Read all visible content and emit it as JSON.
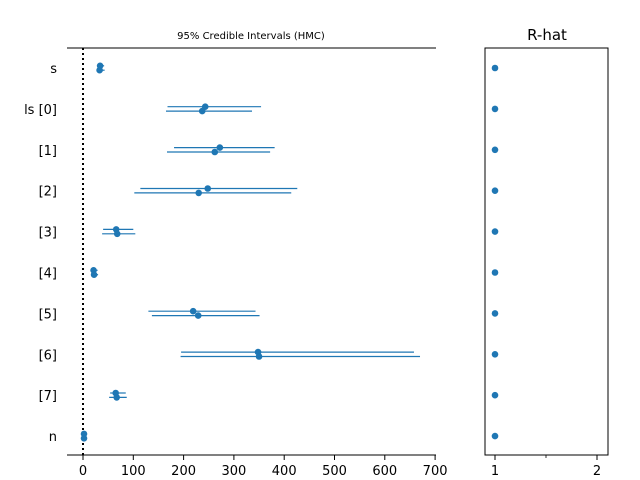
{
  "colors": {
    "series": "#1f77b4",
    "axis": "#000000",
    "refline": "#000000"
  },
  "chart_data": [
    {
      "type": "forest",
      "title": "95% Credible Intervals (HMC)",
      "xlim": [
        -30,
        700
      ],
      "xticks": [
        0,
        100,
        200,
        300,
        400,
        500,
        600,
        700
      ],
      "grid": false,
      "reference_line": {
        "x": 0,
        "style": "dotted"
      },
      "categories": [
        "s",
        "ls [0]",
        "[1]",
        "[2]",
        "[3]",
        "[4]",
        "[5]",
        "[6]",
        "[7]",
        "n"
      ],
      "chains": [
        {
          "median": [
            34,
            243,
            272,
            248,
            66,
            21,
            219,
            348,
            65,
            2
          ],
          "lower": [
            31,
            168,
            181,
            114,
            40,
            18,
            130,
            195,
            54,
            1
          ],
          "upper": [
            42,
            354,
            381,
            426,
            100,
            29,
            343,
            658,
            85,
            3
          ]
        },
        {
          "median": [
            33,
            237,
            262,
            230,
            68,
            22,
            229,
            350,
            67,
            2
          ],
          "lower": [
            30,
            165,
            167,
            102,
            38,
            17,
            137,
            194,
            52,
            1
          ],
          "upper": [
            43,
            336,
            372,
            414,
            104,
            30,
            351,
            670,
            87,
            3
          ]
        }
      ]
    },
    {
      "type": "scatter",
      "title": "R-hat",
      "xlim": [
        0.95,
        2.1
      ],
      "xticks": [
        1,
        2
      ],
      "minor_xticks": [
        1.5
      ],
      "categories": [
        "s",
        "ls [0]",
        "[1]",
        "[2]",
        "[3]",
        "[4]",
        "[5]",
        "[6]",
        "[7]",
        "n"
      ],
      "values": [
        1.0,
        1.0,
        1.0,
        1.0,
        1.0,
        1.0,
        1.0,
        1.0,
        1.0,
        1.0
      ]
    }
  ]
}
